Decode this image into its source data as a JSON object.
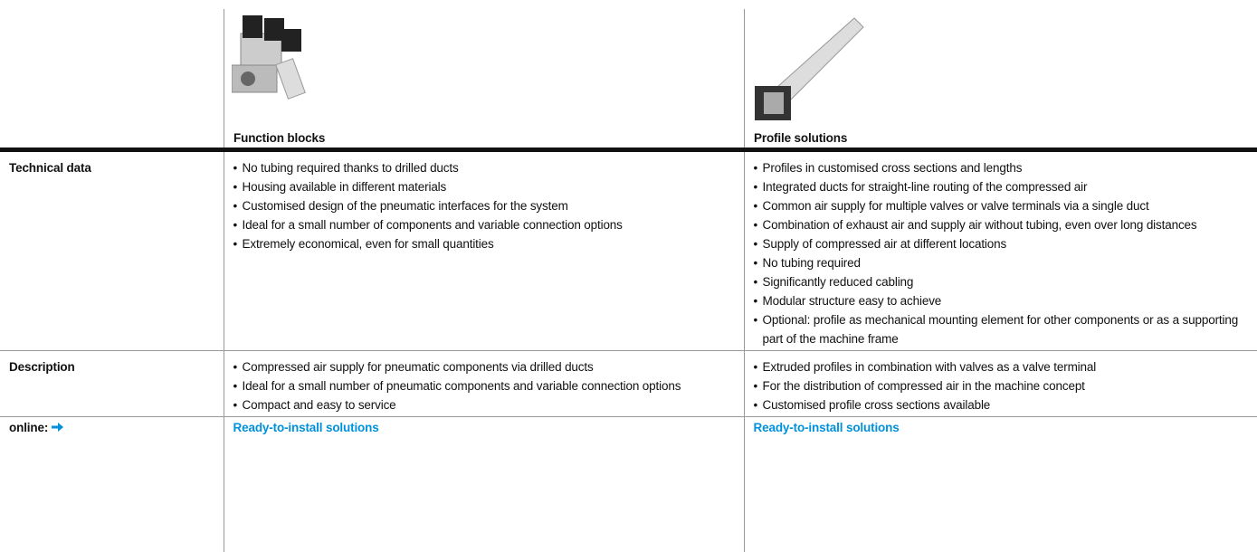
{
  "header": {
    "columns": [
      "Function blocks",
      "Profile solutions"
    ]
  },
  "rows": [
    {
      "label": "Technical data",
      "cells": [
        [
          "No tubing required thanks to drilled ducts",
          "Housing available in different materials",
          "Customised design of the pneumatic interfaces for the system",
          "Ideal for a small number of components and variable connection options",
          "Extremely economical, even for small quantities"
        ],
        [
          "Profiles in customised cross sections and lengths",
          "Integrated ducts for straight-line routing of the compressed air",
          "Common air supply for multiple valves or valve terminals via a single duct",
          "Combination of exhaust air and supply air without tubing, even over long distances",
          "Supply of compressed air at different locations",
          "No tubing required",
          "Significantly reduced cabling",
          "Modular structure easy to achieve",
          "Optional: profile as mechanical mounting element for other components or as a supporting part of the machine frame"
        ]
      ]
    },
    {
      "label": "Description",
      "cells": [
        [
          "Compressed air supply for pneumatic components via drilled ducts",
          "Ideal for a small number of pneumatic components and variable connection options",
          "Compact and easy to service"
        ],
        [
          "Extruded profiles in combination with valves as a valve terminal",
          "For the distribution of compressed air in the machine concept",
          "Customised profile cross sections available"
        ]
      ]
    }
  ],
  "online": {
    "label": "online:",
    "links": [
      "Ready-to-install solutions",
      "Ready-to-install solutions"
    ]
  }
}
